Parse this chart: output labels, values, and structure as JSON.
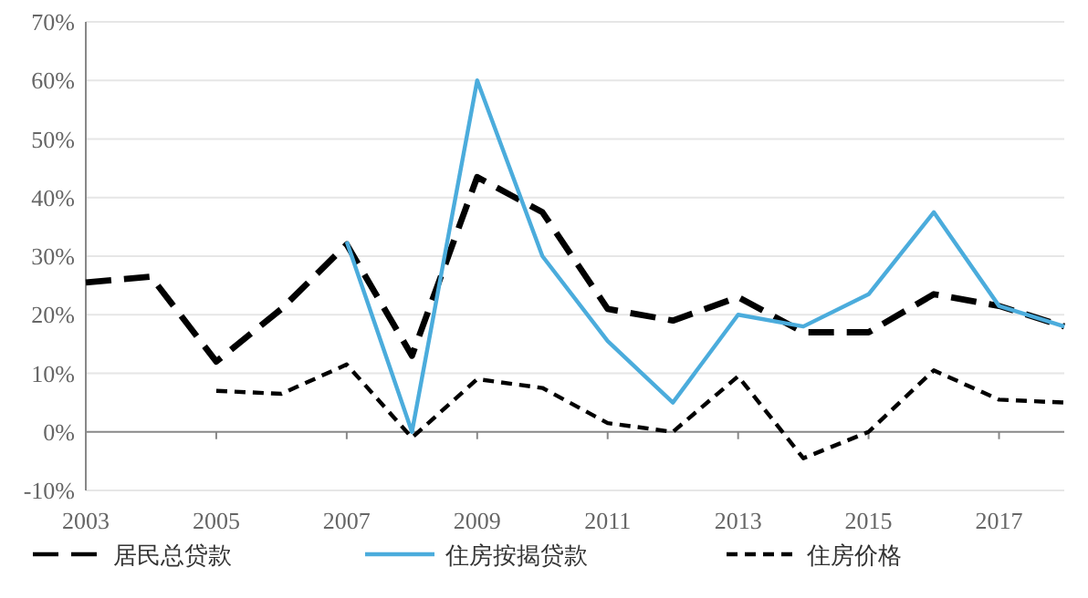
{
  "chart_data": {
    "type": "line",
    "x": [
      2003,
      2004,
      2005,
      2006,
      2007,
      2008,
      2009,
      2010,
      2011,
      2012,
      2013,
      2014,
      2015,
      2016,
      2017,
      2018
    ],
    "xlim": [
      2003,
      2018
    ],
    "xticks": [
      2003,
      2005,
      2007,
      2009,
      2011,
      2013,
      2015,
      2017
    ],
    "ylim": [
      -10,
      70
    ],
    "yticks": [
      {
        "value": -10,
        "label": "-10%"
      },
      {
        "value": 0,
        "label": "0%"
      },
      {
        "value": 10,
        "label": "10%"
      },
      {
        "value": 20,
        "label": "20%"
      },
      {
        "value": 30,
        "label": "30%"
      },
      {
        "value": 40,
        "label": "40%"
      },
      {
        "value": 50,
        "label": "50%"
      },
      {
        "value": 60,
        "label": "60%"
      },
      {
        "value": 70,
        "label": "70%"
      }
    ],
    "grid": "y",
    "legend": "bottom",
    "marker": "none",
    "series": [
      {
        "name": "居民总贷款",
        "color": "#000000",
        "line_style": "dashed",
        "values": [
          25.5,
          26.5,
          12,
          21,
          32,
          13,
          43.5,
          37.5,
          21,
          19,
          23,
          17,
          17,
          23.5,
          21.5,
          18
        ]
      },
      {
        "name": "住房按揭贷款",
        "color": "#4bacdc",
        "line_style": "solid",
        "values": [
          null,
          null,
          null,
          null,
          32.5,
          0,
          60,
          30,
          15.5,
          5,
          20,
          18,
          23.5,
          37.5,
          21.5,
          18
        ]
      },
      {
        "name": "住房价格",
        "color": "#000000",
        "line_style": "dotted",
        "values": [
          null,
          null,
          7,
          6.5,
          11.5,
          -1,
          9,
          7.5,
          1.5,
          0,
          9.5,
          -4.5,
          0,
          10.5,
          5.5,
          5
        ]
      }
    ]
  }
}
